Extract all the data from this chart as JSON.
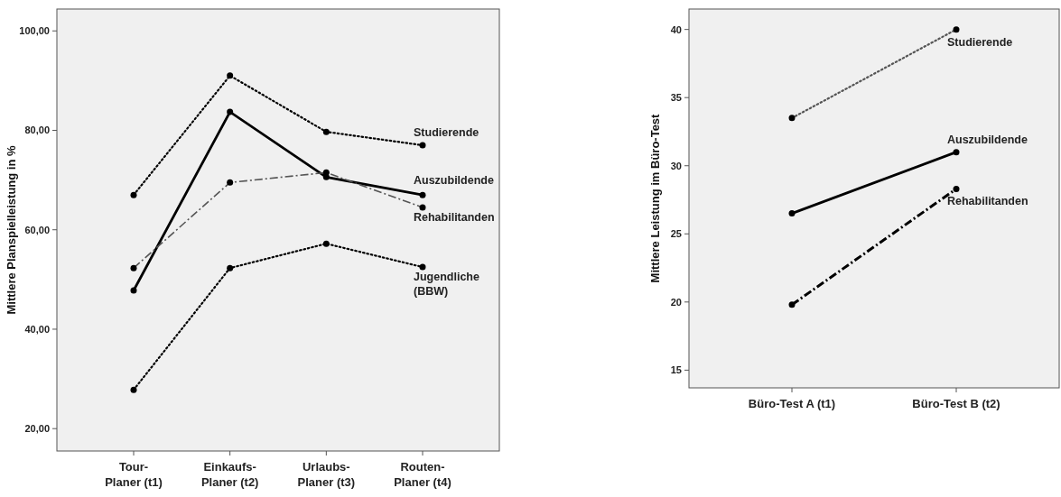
{
  "chart_data": [
    {
      "type": "line",
      "ylabel": "Mittlere Planspielleistung in %",
      "categories": [
        "Tour-\nPlaner (t1)",
        "Einkaufs-\nPlaner (t2)",
        "Urlaubs-\nPlaner (t3)",
        "Routen-\nPlaner (t4)"
      ],
      "ylim": [
        15.5,
        104.4
      ],
      "yticks": [
        {
          "value": 20,
          "label": "20,00"
        },
        {
          "value": 40,
          "label": "40,00"
        },
        {
          "value": 60,
          "label": "60,00"
        },
        {
          "value": 80,
          "label": "80,00"
        },
        {
          "value": 100,
          "label": "100,00"
        }
      ],
      "marker": "circle",
      "grid": false,
      "series": [
        {
          "name": "Studierende",
          "color": "#000000",
          "line_style": "dotted",
          "values": [
            67.0,
            91.0,
            79.7,
            77.0
          ]
        },
        {
          "name": "Auszubildende",
          "color": "#000000",
          "line_style": "solid",
          "values": [
            47.8,
            83.7,
            70.6,
            67.0
          ]
        },
        {
          "name": "Rehabilitanden",
          "color": "#555555",
          "line_style": "dashed",
          "values": [
            52.3,
            69.5,
            71.5,
            64.5
          ]
        },
        {
          "name": "Jugendliche\n(BBW)",
          "color": "#000000",
          "line_style": "dotted",
          "values": [
            27.8,
            52.3,
            57.2,
            52.5
          ]
        }
      ]
    },
    {
      "type": "line",
      "ylabel": "Mittlere Leistung im Büro-Test",
      "categories": [
        "Büro-Test A (t1)",
        "Büro-Test B (t2)"
      ],
      "ylim": [
        13.7,
        41.5
      ],
      "yticks": [
        15,
        20,
        25,
        30,
        35,
        40
      ],
      "marker": "circle",
      "grid": false,
      "series": [
        {
          "name": "Studierende",
          "color": "#555555",
          "line_style": "dotted",
          "values": [
            33.5,
            40.0
          ]
        },
        {
          "name": "Auszubildende",
          "color": "#000000",
          "line_style": "solid",
          "values": [
            26.5,
            31.0
          ]
        },
        {
          "name": "Rehabilitanden",
          "color": "#000000",
          "line_style": "dashed",
          "values": [
            19.8,
            28.3
          ]
        }
      ]
    }
  ]
}
